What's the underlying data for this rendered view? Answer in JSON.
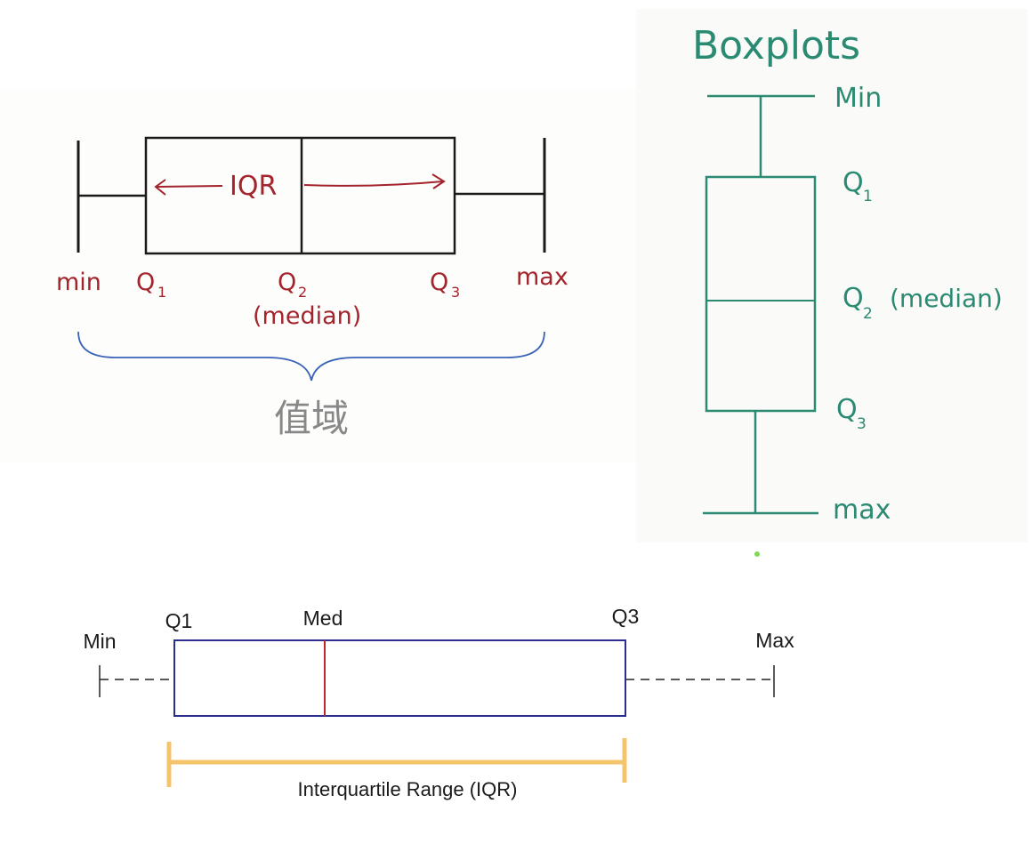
{
  "diagrams": {
    "horizontal_handdrawn": {
      "labels": {
        "iqr": "IQR",
        "min": "min",
        "q1": "Q",
        "q1_sub": "1",
        "q2": "Q",
        "q2_sub": "2",
        "median": "(median)",
        "q3": "Q",
        "q3_sub": "3",
        "max": "max"
      },
      "range_label": "值域",
      "colors": {
        "box": "#1a1a1a",
        "annotation": "#a3242c",
        "brace": "#3a63b8",
        "range_label": "#888888"
      }
    },
    "vertical_boxplot": {
      "title": "Boxplots",
      "labels": {
        "min": "Min",
        "q1": "Q",
        "q1_sub": "1",
        "q2": "Q",
        "q2_sub": "2",
        "median": "(median)",
        "q3": "Q",
        "q3_sub": "3",
        "max": "max"
      },
      "colors": {
        "line": "#2b8a72",
        "text": "#2b8a72",
        "dot": "#7ed957"
      }
    },
    "horizontal_clean": {
      "labels": {
        "min": "Min",
        "q1": "Q1",
        "med": "Med",
        "q3": "Q3",
        "max": "Max",
        "iqr": "Interquartile Range (IQR)"
      },
      "colors": {
        "box": "#2b2d8f",
        "median": "#c0262d",
        "whisker": "#222222",
        "bracket": "#f5c46a",
        "text": "#1a1a1a"
      }
    }
  }
}
